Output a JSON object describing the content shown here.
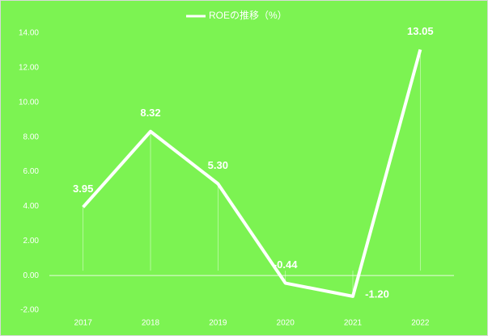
{
  "chart_data": {
    "type": "line",
    "categories": [
      "2017",
      "2018",
      "2019",
      "2020",
      "2021",
      "2022"
    ],
    "series": [
      {
        "name": "ROEの推移（%）",
        "color": "#ffffff",
        "values": [
          3.95,
          8.32,
          5.3,
          -0.44,
          -1.2,
          13.05
        ],
        "value_labels": [
          "3.95",
          "8.32",
          "5.30",
          "-0.44",
          "-1.20",
          "13.05"
        ]
      }
    ],
    "ylim": [
      -2,
      14
    ],
    "yticks": [
      {
        "value": -2,
        "label": "-2.00"
      },
      {
        "value": 0,
        "label": "0.00"
      },
      {
        "value": 2,
        "label": "2.00"
      },
      {
        "value": 4,
        "label": "4.00"
      },
      {
        "value": 6,
        "label": "6.00"
      },
      {
        "value": 8,
        "label": "8.00"
      },
      {
        "value": 10,
        "label": "10.00"
      },
      {
        "value": 12,
        "label": "12.00"
      },
      {
        "value": 14,
        "label": "14.00"
      }
    ],
    "background": "#7cf352"
  }
}
